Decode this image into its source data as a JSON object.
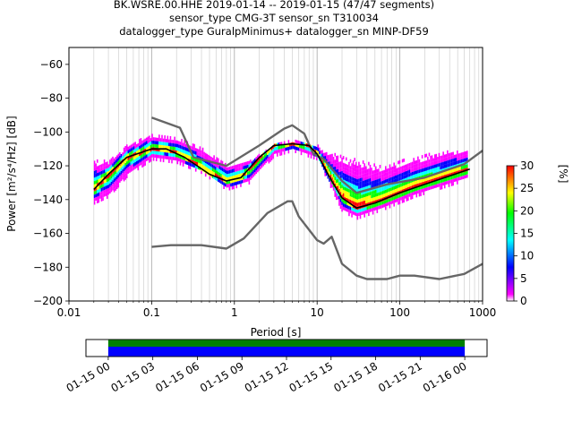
{
  "chart_data": {
    "type": "heatmap",
    "title_lines": [
      "BK.WSRE.00.HHE   2019-01-14 -- 2019-01-15  (47/47 segments)",
      "sensor_type CMG-3T sensor_sn T310034",
      "datalogger_type GuralpMinimus+ datalogger_sn MINP-DF59"
    ],
    "xlabel": "Period [s]",
    "ylabel": "Power [m²/s⁴/Hz] [dB]",
    "xscale": "log",
    "xlim": [
      0.01,
      1000
    ],
    "ylim": [
      -200,
      -50
    ],
    "x_ticks": [
      {
        "v": 0.01,
        "label": "0.01"
      },
      {
        "v": 0.1,
        "label": "0.1"
      },
      {
        "v": 1,
        "label": "1"
      },
      {
        "v": 10,
        "label": "10"
      },
      {
        "v": 100,
        "label": "100"
      },
      {
        "v": 1000,
        "label": "1000"
      }
    ],
    "y_ticks": [
      {
        "v": -60,
        "label": "−60"
      },
      {
        "v": -80,
        "label": "−80"
      },
      {
        "v": -100,
        "label": "−100"
      },
      {
        "v": -120,
        "label": "−120"
      },
      {
        "v": -140,
        "label": "−140"
      },
      {
        "v": -160,
        "label": "−160"
      },
      {
        "v": -180,
        "label": "−180"
      },
      {
        "v": -200,
        "label": "−200"
      }
    ],
    "grid": "x-major-and-minor",
    "colorbar": {
      "label": "[%]",
      "range": [
        0,
        30
      ],
      "ticks": [
        "0",
        "5",
        "10",
        "15",
        "20",
        "25",
        "30"
      ],
      "colormap": [
        "#ffffff",
        "#ff00ff",
        "#0000ff",
        "#00ffff",
        "#00ff00",
        "#ffff00",
        "#ff0000"
      ]
    },
    "series": [
      {
        "role": "nhnm",
        "color": "#666666",
        "points": [
          [
            0.1,
            -168
          ],
          [
            0.17,
            -167
          ],
          [
            0.4,
            -167
          ],
          [
            0.8,
            -169
          ],
          [
            1.3,
            -163
          ],
          [
            2.5,
            -148
          ],
          [
            4.4,
            -141
          ],
          [
            5,
            -141
          ],
          [
            6,
            -150
          ],
          [
            10,
            -164
          ],
          [
            12,
            -166
          ],
          [
            15,
            -162
          ],
          [
            20,
            -178
          ],
          [
            30,
            -185
          ],
          [
            40,
            -187
          ],
          [
            70,
            -187
          ],
          [
            100,
            -185
          ],
          [
            150,
            -185
          ],
          [
            300,
            -187
          ],
          [
            600,
            -184
          ],
          [
            1000,
            -178
          ]
        ]
      },
      {
        "role": "nlnm",
        "color": "#666666",
        "points": [
          [
            0.1,
            -91.5
          ],
          [
            0.22,
            -97.5
          ],
          [
            0.32,
            -115
          ],
          [
            0.8,
            -120
          ],
          [
            2,
            -108
          ],
          [
            4,
            -98
          ],
          [
            5,
            -96
          ],
          [
            7,
            -101
          ],
          [
            9,
            -113
          ],
          [
            12,
            -116
          ],
          [
            20,
            -129
          ],
          [
            30,
            -136
          ],
          [
            70,
            -131
          ],
          [
            200,
            -127
          ],
          [
            400,
            -122
          ],
          [
            600,
            -119
          ],
          [
            1000,
            -111
          ]
        ]
      },
      {
        "role": "mean",
        "color": "#000000",
        "points": [
          [
            0.02,
            -134
          ],
          [
            0.03,
            -125
          ],
          [
            0.05,
            -115
          ],
          [
            0.1,
            -110
          ],
          [
            0.15,
            -110
          ],
          [
            0.25,
            -115
          ],
          [
            0.5,
            -125
          ],
          [
            0.8,
            -129
          ],
          [
            1.2,
            -127
          ],
          [
            2,
            -115
          ],
          [
            3,
            -108
          ],
          [
            5,
            -107
          ],
          [
            8,
            -108
          ],
          [
            10,
            -113
          ],
          [
            15,
            -129
          ],
          [
            20,
            -139
          ],
          [
            30,
            -145
          ],
          [
            50,
            -142
          ],
          [
            100,
            -136
          ],
          [
            200,
            -131
          ],
          [
            400,
            -126
          ],
          [
            700,
            -122
          ]
        ]
      },
      {
        "role": "percentile-upper",
        "color": "#ff00ff",
        "points": [
          [
            0.03,
            -117
          ],
          [
            0.05,
            -108
          ],
          [
            0.1,
            -101
          ],
          [
            0.2,
            -104
          ],
          [
            0.4,
            -109
          ],
          [
            0.8,
            -120
          ],
          [
            1.5,
            -117
          ],
          [
            3,
            -108
          ],
          [
            5,
            -105
          ],
          [
            10,
            -108
          ],
          [
            15,
            -113
          ],
          [
            30,
            -116
          ],
          [
            60,
            -120
          ],
          [
            120,
            -116
          ],
          [
            300,
            -112
          ],
          [
            650,
            -109
          ]
        ]
      },
      {
        "role": "percentile-lower",
        "color": "#ff00ff",
        "points": [
          [
            0.02,
            -142
          ],
          [
            0.03,
            -138
          ],
          [
            0.05,
            -126
          ],
          [
            0.1,
            -116
          ],
          [
            0.2,
            -118
          ],
          [
            0.4,
            -124
          ],
          [
            0.8,
            -134
          ],
          [
            1.5,
            -130
          ],
          [
            3,
            -114
          ],
          [
            5,
            -111
          ],
          [
            10,
            -116
          ],
          [
            20,
            -147
          ],
          [
            30,
            -151
          ],
          [
            60,
            -146
          ],
          [
            150,
            -138
          ],
          [
            650,
            -128
          ]
        ]
      }
    ],
    "timeline": {
      "tick_labels": [
        "01-15 00",
        "01-15 03",
        "01-15 06",
        "01-15 09",
        "01-15 12",
        "01-15 15",
        "01-15 18",
        "01-15 21",
        "01-16 00"
      ],
      "bars": [
        {
          "role": "data-coverage",
          "color": "#008000",
          "start": 0,
          "end": 24
        },
        {
          "role": "gap-coverage",
          "color": "#0000ff",
          "start": 0,
          "end": 24
        }
      ],
      "range_hours": [
        -1.5,
        25.5
      ]
    }
  }
}
